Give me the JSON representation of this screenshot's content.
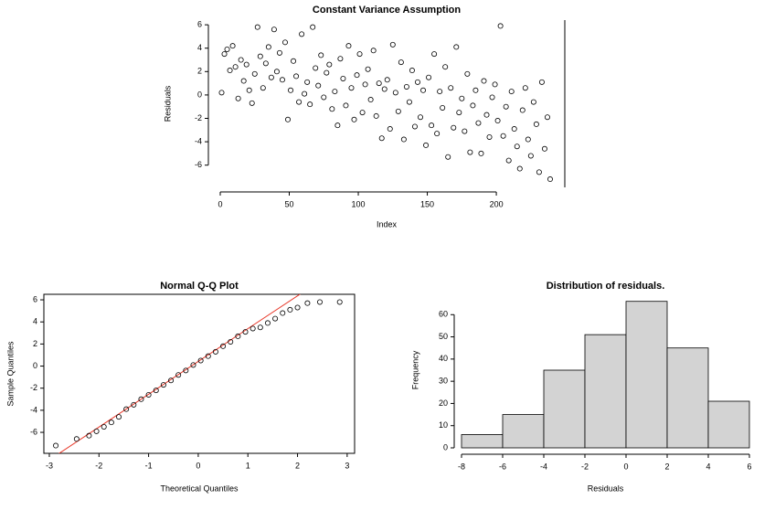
{
  "chart_data": [
    {
      "type": "scatter",
      "title": "Constant Variance Assumption",
      "xlabel": "Index",
      "ylabel": "Residuals",
      "xlim": [
        -8.6,
        249.6
      ],
      "ylim": [
        -7.9,
        6.4
      ],
      "xticks": [
        0,
        50,
        100,
        150,
        200
      ],
      "yticks": [
        -6,
        -4,
        -2,
        0,
        2,
        4,
        6
      ],
      "color": "#000000",
      "x": [
        1,
        3,
        5,
        7,
        9,
        11,
        13,
        15,
        17,
        19,
        21,
        23,
        25,
        27,
        29,
        31,
        33,
        35,
        37,
        39,
        41,
        43,
        45,
        47,
        49,
        51,
        53,
        55,
        57,
        59,
        61,
        63,
        65,
        67,
        69,
        71,
        73,
        75,
        77,
        79,
        81,
        83,
        85,
        87,
        89,
        91,
        93,
        95,
        97,
        99,
        101,
        103,
        105,
        107,
        109,
        111,
        113,
        115,
        117,
        119,
        121,
        123,
        125,
        127,
        129,
        131,
        133,
        135,
        137,
        139,
        141,
        143,
        145,
        147,
        149,
        151,
        153,
        155,
        157,
        159,
        161,
        163,
        165,
        167,
        169,
        171,
        173,
        175,
        177,
        179,
        181,
        183,
        185,
        187,
        189,
        191,
        193,
        195,
        197,
        199,
        201,
        203,
        205,
        207,
        209,
        211,
        213,
        215,
        217,
        219,
        221,
        223,
        225,
        227,
        229,
        231,
        233,
        235,
        237,
        239
      ],
      "values": [
        0.2,
        3.5,
        3.9,
        2.1,
        4.2,
        2.4,
        -0.3,
        3.0,
        1.2,
        2.6,
        0.4,
        -0.7,
        1.8,
        5.8,
        3.3,
        0.6,
        2.7,
        4.1,
        1.5,
        5.6,
        2.0,
        3.6,
        1.3,
        4.5,
        -2.1,
        0.4,
        2.9,
        1.6,
        -0.6,
        5.2,
        0.1,
        1.1,
        -0.8,
        5.8,
        2.3,
        0.8,
        3.4,
        -0.2,
        1.9,
        2.6,
        -1.2,
        0.3,
        -2.6,
        3.1,
        1.4,
        -0.9,
        4.2,
        0.6,
        -2.1,
        1.7,
        3.5,
        -1.5,
        0.9,
        2.2,
        -0.4,
        3.8,
        -1.8,
        1.0,
        -3.7,
        0.5,
        1.3,
        -2.9,
        4.3,
        0.2,
        -1.4,
        2.8,
        -3.8,
        0.7,
        -0.6,
        2.1,
        -2.7,
        1.1,
        -1.9,
        0.4,
        -4.3,
        1.5,
        -2.6,
        3.5,
        -3.3,
        0.3,
        -1.1,
        2.4,
        -5.3,
        0.6,
        -2.8,
        4.1,
        -1.5,
        -0.3,
        -3.1,
        1.8,
        -4.9,
        -0.9,
        0.4,
        -2.4,
        -5.0,
        1.2,
        -1.7,
        -3.6,
        -0.2,
        0.9,
        -2.2,
        5.9,
        -3.5,
        -1.0,
        -5.6,
        0.3,
        -2.9,
        -4.4,
        -6.3,
        -1.3,
        0.6,
        -3.8,
        -5.2,
        -0.6,
        -2.5,
        -6.6,
        1.1,
        -4.6,
        -1.9,
        -7.2
      ]
    },
    {
      "type": "qq",
      "title": "Normal Q-Q Plot",
      "xlabel": "Theoretical Quantiles",
      "ylabel": "Sample Quantiles",
      "xlim": [
        -3.11,
        3.15
      ],
      "ylim": [
        -7.9,
        6.5
      ],
      "xticks": [
        -3,
        -2,
        -1,
        0,
        1,
        2,
        3
      ],
      "yticks": [
        -6,
        -4,
        -2,
        0,
        2,
        4,
        6
      ],
      "color": "#000000",
      "line_color": "#e8392a",
      "line": {
        "slope": 2.97,
        "intercept": 0.42
      },
      "x": [
        -2.87,
        -2.45,
        -2.2,
        -2.05,
        -1.9,
        -1.75,
        -1.6,
        -1.45,
        -1.3,
        -1.15,
        -1.0,
        -0.85,
        -0.7,
        -0.55,
        -0.4,
        -0.25,
        -0.1,
        0.05,
        0.2,
        0.35,
        0.5,
        0.65,
        0.8,
        0.95,
        1.1,
        1.25,
        1.4,
        1.55,
        1.7,
        1.85,
        2.0,
        2.2,
        2.45,
        2.85
      ],
      "values": [
        -7.2,
        -6.6,
        -6.3,
        -5.9,
        -5.5,
        -5.1,
        -4.6,
        -3.9,
        -3.5,
        -3.0,
        -2.6,
        -2.2,
        -1.7,
        -1.3,
        -0.8,
        -0.4,
        0.1,
        0.5,
        0.9,
        1.3,
        1.8,
        2.2,
        2.7,
        3.1,
        3.4,
        3.5,
        3.9,
        4.3,
        4.8,
        5.1,
        5.3,
        5.7,
        5.8,
        5.8
      ]
    },
    {
      "type": "histogram",
      "title": "Distribution of residuals.",
      "xlabel": "Residuals",
      "ylabel": "Frequency",
      "xlim": [
        -8,
        6
      ],
      "ylim": [
        0,
        70
      ],
      "xticks": [
        -8,
        -6,
        -4,
        -2,
        0,
        2,
        4,
        6
      ],
      "yticks": [
        0,
        10,
        20,
        30,
        40,
        50,
        60
      ],
      "color": "#d3d3d3",
      "bins": [
        -8,
        -6,
        -4,
        -2,
        0,
        2,
        4,
        6
      ],
      "values": [
        6,
        15,
        35,
        51,
        66,
        45,
        21
      ]
    }
  ]
}
